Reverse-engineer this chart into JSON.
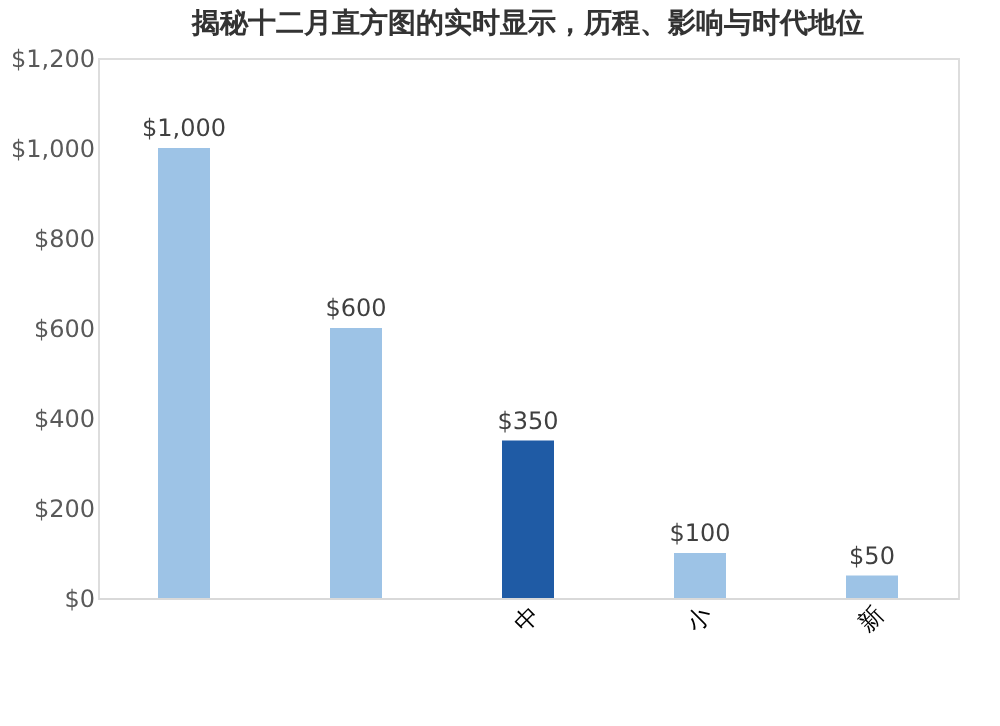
{
  "chart_data": {
    "type": "bar",
    "title": "揭秘十二月直方图的实时显示，历程、影响与时代地位",
    "categories": [
      null,
      null,
      "中",
      "小",
      "新"
    ],
    "values": [
      1000,
      600,
      350,
      100,
      50
    ],
    "colors": [
      "#9dc3e6",
      "#9dc3e6",
      "#1f5ba5",
      "#9dc3e6",
      "#9dc3e6"
    ],
    "value_labels": [
      "$1,000",
      "$600",
      "$350",
      "$100",
      "$50"
    ],
    "ylim": [
      0,
      1200
    ],
    "yticks": [
      {
        "value": 0,
        "label": "$0"
      },
      {
        "value": 200,
        "label": "$200"
      },
      {
        "value": 400,
        "label": "$400"
      },
      {
        "value": 600,
        "label": "$600"
      },
      {
        "value": 800,
        "label": "$800"
      },
      {
        "value": 1000,
        "label": "$1,000"
      },
      {
        "value": 1200,
        "label": "$1,200"
      }
    ],
    "grid": false
  }
}
